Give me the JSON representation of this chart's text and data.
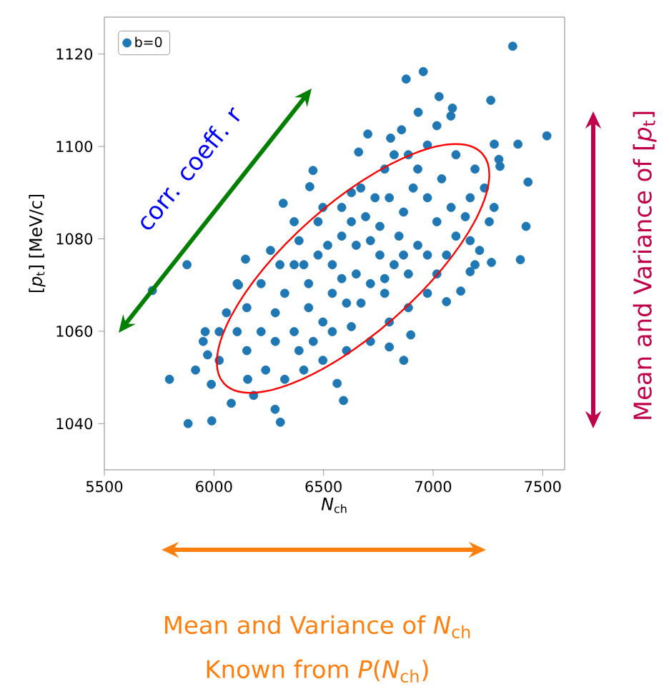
{
  "chart_data": {
    "type": "scatter",
    "xlabel": "*N*$_{ch}$",
    "ylabel": "[*p*$_{t}$]   [MeV/c]",
    "xlim": [
      5500,
      7600
    ],
    "ylim": [
      1030,
      1128
    ],
    "xticks": [
      5500,
      6000,
      6500,
      7000,
      7500
    ],
    "yticks": [
      1040,
      1060,
      1080,
      1100,
      1120
    ],
    "legend": "top left",
    "annotations": [
      "corr. coeff. r",
      "Mean and Variance of [*p*$_{t}$]",
      "Mean and Variance of *N*$_{ch}$",
      "Known from *P*(*N*$_{ch}$)"
    ],
    "series": [
      {
        "name": "b=0",
        "color": "#1f77b4",
        "x": [
          7363,
          6955,
          6877,
          7519,
          7263,
          7027,
          6932,
          7088,
          7081,
          6702,
          6806,
          6856,
          6660,
          7387,
          7433,
          7279,
          7305,
          7424,
          7398,
          7266,
          6452,
          6437,
          6316,
          6144,
          5877,
          5719,
          5797,
          5882,
          5990,
          6303,
          6279,
          6591,
          5916,
          5988,
          5960,
          5951,
          5971,
          6024,
          6057,
          6112,
          6079,
          6181,
          6562,
          6800,
          6898,
          7061,
          7126,
          7169,
          7212,
          7256,
          7234,
          7191,
          7104,
          6974,
          6887,
          6779,
          6670,
          6583,
          6475,
          6388,
          6301,
          6215,
          6150,
          6106,
          6150,
          6236,
          6323,
          6410,
          6497,
          6605,
          6714,
          6800,
          6887,
          6974,
          7017,
          7061,
          7104,
          7147,
          7169,
          6432,
          6540,
          6649,
          6757,
          6865,
          6974,
          7017,
          6930,
          6822,
          6714,
          6605,
          6497,
          6366,
          6280,
          6323,
          6475,
          6583,
          6692,
          6800,
          6909,
          6844,
          6757,
          6649,
          6540,
          6432,
          6366,
          6671,
          6779,
          6887,
          6974,
          7082,
          7039,
          6930,
          6735,
          6627,
          6519,
          6410,
          6280,
          6453,
          6627,
          6779,
          6865,
          6714,
          6583,
          6540,
          6388,
          6215,
          6024,
          7191,
          7169,
          7278,
          7300,
          7017,
          6822,
          6627,
          6497,
          6366,
          6258,
          6106,
          6154,
          6866
        ],
        "values": [
          1121.7,
          1116.2,
          1114.6,
          1102.3,
          1110,
          1110.8,
          1107.4,
          1108.3,
          1106.6,
          1102.7,
          1101.8,
          1103.6,
          1098.8,
          1100.5,
          1092.3,
          1100.5,
          1095.7,
          1082.7,
          1075.5,
          1074.9,
          1094.8,
          1091.3,
          1087.7,
          1075.6,
          1074.4,
          1068.8,
          1049.6,
          1040,
          1040.6,
          1040.3,
          1043.1,
          1045,
          1051.6,
          1048.5,
          1059.9,
          1057.8,
          1054.9,
          1059.9,
          1064,
          1070,
          1044.4,
          1046.1,
          1048.7,
          1056.6,
          1059.2,
          1066.4,
          1068.7,
          1072.9,
          1077.5,
          1083.7,
          1091,
          1095.1,
          1098.2,
          1100.3,
          1098.2,
          1095.1,
          1091,
          1086.8,
          1083.7,
          1079.6,
          1074.4,
          1070.3,
          1065.1,
          1059.9,
          1055.8,
          1051.6,
          1049.6,
          1051.6,
          1053.7,
          1055.8,
          1057.8,
          1062,
          1065.1,
          1068.2,
          1072.4,
          1076.5,
          1080.6,
          1084.8,
          1088.9,
          1070.3,
          1074.4,
          1078.6,
          1082.7,
          1085.8,
          1088.9,
          1083.7,
          1078.6,
          1074.4,
          1070.3,
          1066.1,
          1062,
          1059.9,
          1064,
          1068.2,
          1076.5,
          1080.6,
          1084.8,
          1088.9,
          1091,
          1080.6,
          1076.5,
          1072.4,
          1068.2,
          1065.1,
          1074.4,
          1066.1,
          1068.2,
          1072.4,
          1076.5,
          1086.8,
          1093,
          1095.1,
          1088.9,
          1083.7,
          1078.6,
          1074.4,
          1057.8,
          1057.8,
          1061,
          1071.4,
          1076.5,
          1079.6,
          1071.4,
          1059.9,
          1055.8,
          1059.9,
          1053.7,
          1074.4,
          1079.6,
          1086.8,
          1097.2,
          1104.5,
          1098.2,
          1090,
          1086.8,
          1083.7,
          1077.5,
          1070.3,
          1049.6,
          1053.7
        ]
      }
    ]
  }
}
